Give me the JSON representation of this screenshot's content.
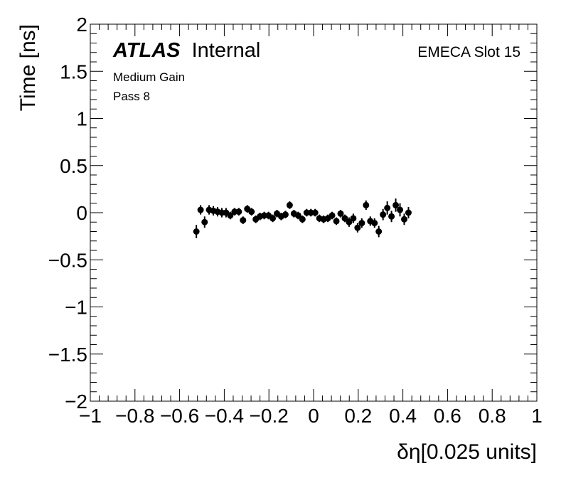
{
  "chart_data": {
    "type": "scatter",
    "title": "",
    "xlabel": "δη[0.025 units]",
    "ylabel": "Time [ns]",
    "xlim": [
      -1,
      1
    ],
    "ylim": [
      -2,
      2
    ],
    "x_ticks": [
      -1,
      -0.8,
      -0.6,
      -0.4,
      -0.2,
      0,
      0.2,
      0.4,
      0.6,
      0.8,
      1
    ],
    "x_tick_labels": [
      "−1",
      "−0.8",
      "−0.6",
      "−0.4",
      "−0.2",
      "0",
      "0.2",
      "0.4",
      "0.6",
      "0.8",
      "1"
    ],
    "y_ticks": [
      -2,
      -1.5,
      -1,
      -0.5,
      0,
      0.5,
      1,
      1.5,
      2
    ],
    "y_tick_labels": [
      "−2",
      "−1.5",
      "−1",
      "−0.5",
      "0",
      "0.5",
      "1",
      "1.5",
      "2"
    ],
    "grid": false,
    "annotations": {
      "atlas": "ATLAS",
      "internal": "Internal",
      "slot": "EMECA Slot 15",
      "gain": "Medium Gain",
      "pass": "Pass 8"
    },
    "marker_color": "#000000",
    "points": [
      {
        "x": -0.525,
        "y": -0.2,
        "err": 0.07
      },
      {
        "x": -0.506,
        "y": 0.03,
        "err": 0.05
      },
      {
        "x": -0.488,
        "y": -0.1,
        "err": 0.06
      },
      {
        "x": -0.468,
        "y": 0.03,
        "err": 0.05
      },
      {
        "x": -0.449,
        "y": 0.02,
        "err": 0.05
      },
      {
        "x": -0.43,
        "y": 0.01,
        "err": 0.05
      },
      {
        "x": -0.411,
        "y": 0.0,
        "err": 0.05
      },
      {
        "x": -0.392,
        "y": 0.0,
        "err": 0.05
      },
      {
        "x": -0.373,
        "y": -0.03,
        "err": 0.04
      },
      {
        "x": -0.354,
        "y": 0.01,
        "err": 0.04
      },
      {
        "x": -0.335,
        "y": 0.01,
        "err": 0.04
      },
      {
        "x": -0.316,
        "y": -0.08,
        "err": 0.04
      },
      {
        "x": -0.297,
        "y": 0.04,
        "err": 0.04
      },
      {
        "x": -0.278,
        "y": 0.01,
        "err": 0.04
      },
      {
        "x": -0.259,
        "y": -0.07,
        "err": 0.04
      },
      {
        "x": -0.24,
        "y": -0.04,
        "err": 0.04
      },
      {
        "x": -0.221,
        "y": -0.03,
        "err": 0.04
      },
      {
        "x": -0.202,
        "y": -0.03,
        "err": 0.04
      },
      {
        "x": -0.183,
        "y": -0.06,
        "err": 0.04
      },
      {
        "x": -0.164,
        "y": -0.01,
        "err": 0.04
      },
      {
        "x": -0.145,
        "y": -0.04,
        "err": 0.04
      },
      {
        "x": -0.126,
        "y": -0.02,
        "err": 0.04
      },
      {
        "x": -0.107,
        "y": 0.08,
        "err": 0.04
      },
      {
        "x": -0.088,
        "y": -0.01,
        "err": 0.04
      },
      {
        "x": -0.069,
        "y": -0.03,
        "err": 0.04
      },
      {
        "x": -0.05,
        "y": -0.07,
        "err": 0.04
      },
      {
        "x": -0.031,
        "y": 0.0,
        "err": 0.04
      },
      {
        "x": -0.012,
        "y": 0.0,
        "err": 0.04
      },
      {
        "x": 0.007,
        "y": 0.0,
        "err": 0.04
      },
      {
        "x": 0.026,
        "y": -0.06,
        "err": 0.04
      },
      {
        "x": 0.045,
        "y": -0.07,
        "err": 0.04
      },
      {
        "x": 0.064,
        "y": -0.06,
        "err": 0.04
      },
      {
        "x": 0.083,
        "y": -0.03,
        "err": 0.04
      },
      {
        "x": 0.102,
        "y": -0.09,
        "err": 0.04
      },
      {
        "x": 0.121,
        "y": -0.01,
        "err": 0.04
      },
      {
        "x": 0.14,
        "y": -0.06,
        "err": 0.04
      },
      {
        "x": 0.159,
        "y": -0.1,
        "err": 0.05
      },
      {
        "x": 0.178,
        "y": -0.06,
        "err": 0.05
      },
      {
        "x": 0.197,
        "y": -0.16,
        "err": 0.05
      },
      {
        "x": 0.216,
        "y": -0.11,
        "err": 0.05
      },
      {
        "x": 0.235,
        "y": 0.08,
        "err": 0.05
      },
      {
        "x": 0.254,
        "y": -0.09,
        "err": 0.05
      },
      {
        "x": 0.273,
        "y": -0.11,
        "err": 0.05
      },
      {
        "x": 0.292,
        "y": -0.2,
        "err": 0.06
      },
      {
        "x": 0.311,
        "y": -0.02,
        "err": 0.06
      },
      {
        "x": 0.33,
        "y": 0.05,
        "err": 0.07
      },
      {
        "x": 0.349,
        "y": -0.04,
        "err": 0.06
      },
      {
        "x": 0.368,
        "y": 0.08,
        "err": 0.07
      },
      {
        "x": 0.387,
        "y": 0.03,
        "err": 0.07
      },
      {
        "x": 0.406,
        "y": -0.07,
        "err": 0.06
      },
      {
        "x": 0.425,
        "y": 0.0,
        "err": 0.06
      }
    ]
  }
}
